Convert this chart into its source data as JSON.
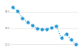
{
  "years": [
    2010,
    2011,
    2012,
    2013,
    2014,
    2015,
    2016,
    2017,
    2018,
    2019,
    2020,
    2021,
    2022,
    2023
  ],
  "values": [
    145.7,
    140.3,
    132.2,
    127.0,
    123.4,
    119.6,
    118.1,
    118.5,
    120.4,
    122.4,
    107.8,
    113.0,
    106.0,
    99.9
  ],
  "line_color": "#2196d8",
  "background_color": "#ffffff",
  "grid_color": "#d8d8d8",
  "ylim": [
    88,
    152
  ],
  "xlim": [
    2009.5,
    2023.5
  ],
  "ytick_values": [
    100,
    120,
    140
  ],
  "linestyle": "dotted",
  "linewidth": 0.8,
  "markersize": 2.0
}
